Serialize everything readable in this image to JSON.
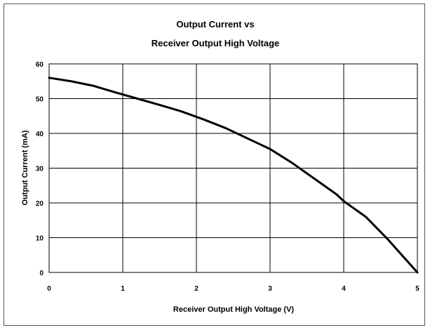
{
  "chart_data": {
    "type": "line",
    "title_lines": [
      "Output Current vs",
      "Receiver Output High Voltage"
    ],
    "xlabel": "Receiver Output High Voltage (V)",
    "ylabel": "Output Current (mA)",
    "xlim": [
      0,
      5
    ],
    "ylim": [
      0,
      60
    ],
    "x_ticks": [
      0,
      1,
      2,
      3,
      4,
      5
    ],
    "y_ticks": [
      0,
      10,
      20,
      30,
      40,
      50,
      60
    ],
    "grid": true,
    "legend": "none",
    "line_color": "#000000",
    "series": [
      {
        "x": [
          0,
          0.3,
          0.6,
          0.9,
          1.2,
          1.5,
          1.8,
          2.1,
          2.4,
          2.7,
          3.0,
          3.3,
          3.6,
          3.9,
          4.0,
          4.3,
          4.6,
          5.0
        ],
        "values": [
          56.0,
          55.0,
          53.7,
          51.8,
          50.0,
          48.2,
          46.3,
          44.0,
          41.5,
          38.5,
          35.5,
          31.5,
          27.0,
          22.5,
          20.5,
          16.0,
          9.5,
          0.0
        ]
      }
    ]
  }
}
